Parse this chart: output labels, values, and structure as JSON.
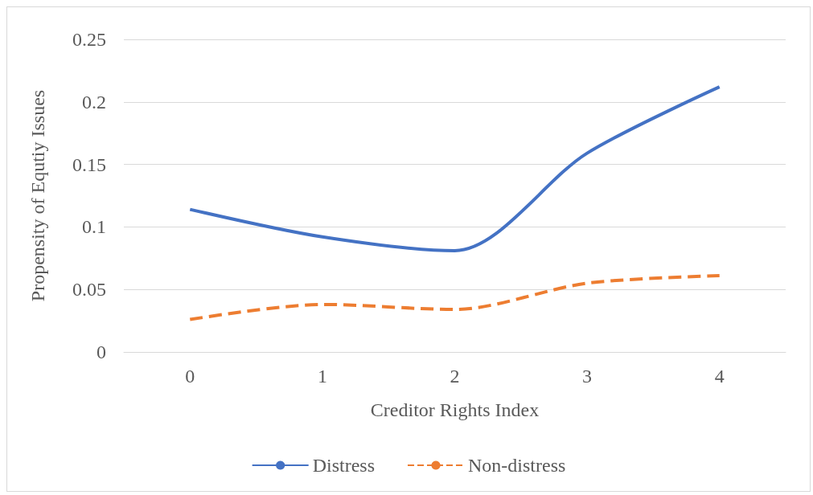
{
  "chart_data": {
    "type": "line",
    "xlabel": "Creditor Rights Index",
    "ylabel": "Propensity of Equtiy Issues",
    "categories": [
      "0",
      "1",
      "2",
      "3",
      "4"
    ],
    "series": [
      {
        "name": "Distress",
        "color": "#4472c4",
        "line_style": "solid",
        "values": [
          0.114,
          0.092,
          0.081,
          0.159,
          0.212
        ]
      },
      {
        "name": "Non-distress",
        "color": "#ed7d31",
        "line_style": "dashed",
        "values": [
          0.026,
          0.038,
          0.034,
          0.055,
          0.061
        ]
      }
    ],
    "ylim": [
      0,
      0.25
    ],
    "yticks": [
      0,
      0.05,
      0.1,
      0.15,
      0.2,
      0.25
    ],
    "grid": "y",
    "legend": "bottom",
    "marker": "none"
  }
}
